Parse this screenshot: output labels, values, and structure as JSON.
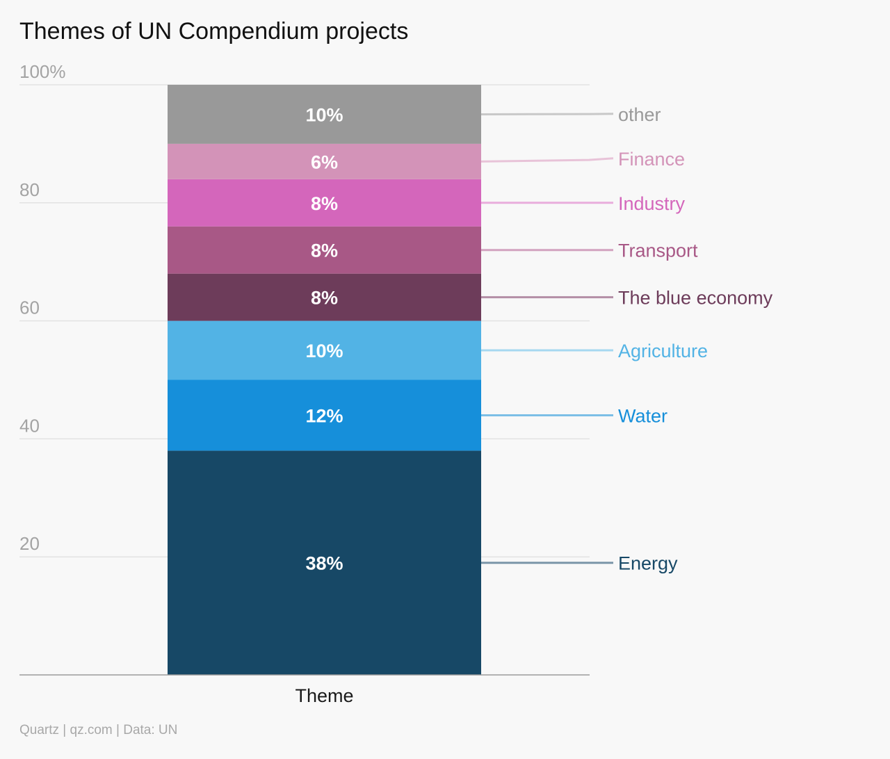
{
  "chart_data": {
    "type": "bar",
    "stacked": true,
    "title": "Themes of UN Compendium projects",
    "source": "Quartz | qz.com | Data: UN",
    "categories": [
      "Theme"
    ],
    "yticks": [
      {
        "value": 20,
        "label": "20"
      },
      {
        "value": 40,
        "label": "40"
      },
      {
        "value": 60,
        "label": "60"
      },
      {
        "value": 80,
        "label": "80"
      },
      {
        "value": 100,
        "label": "100%"
      }
    ],
    "ylim": [
      0,
      100
    ],
    "series": [
      {
        "name": "Energy",
        "value": 38,
        "label": "38%",
        "color": "#174866",
        "line_color": "#7a95a8",
        "text_color": "#174866"
      },
      {
        "name": "Water",
        "value": 12,
        "label": "12%",
        "color": "#168fda",
        "line_color": "#7cbfe6",
        "text_color": "#168fda"
      },
      {
        "name": "Agriculture",
        "value": 10,
        "label": "10%",
        "color": "#52b3e5",
        "line_color": "#a6d8f0",
        "text_color": "#52b3e5"
      },
      {
        "name": "The blue economy",
        "value": 8,
        "label": "8%",
        "color": "#6d3c5a",
        "line_color": "#b48fa6",
        "text_color": "#6d3c5a"
      },
      {
        "name": "Transport",
        "value": 8,
        "label": "8%",
        "color": "#a85886",
        "line_color": "#d2a3bf",
        "text_color": "#a85886"
      },
      {
        "name": "Industry",
        "value": 8,
        "label": "8%",
        "color": "#d466bb",
        "line_color": "#e9addc",
        "text_color": "#d466bb"
      },
      {
        "name": "Finance",
        "value": 6,
        "label": "6%",
        "color": "#d393b8",
        "line_color": "#e8c3d8",
        "text_color": "#d393b8"
      },
      {
        "name": "other",
        "value": 10,
        "label": "10%",
        "color": "#999999",
        "line_color": "#c8c8c8",
        "text_color": "#999999"
      }
    ]
  }
}
